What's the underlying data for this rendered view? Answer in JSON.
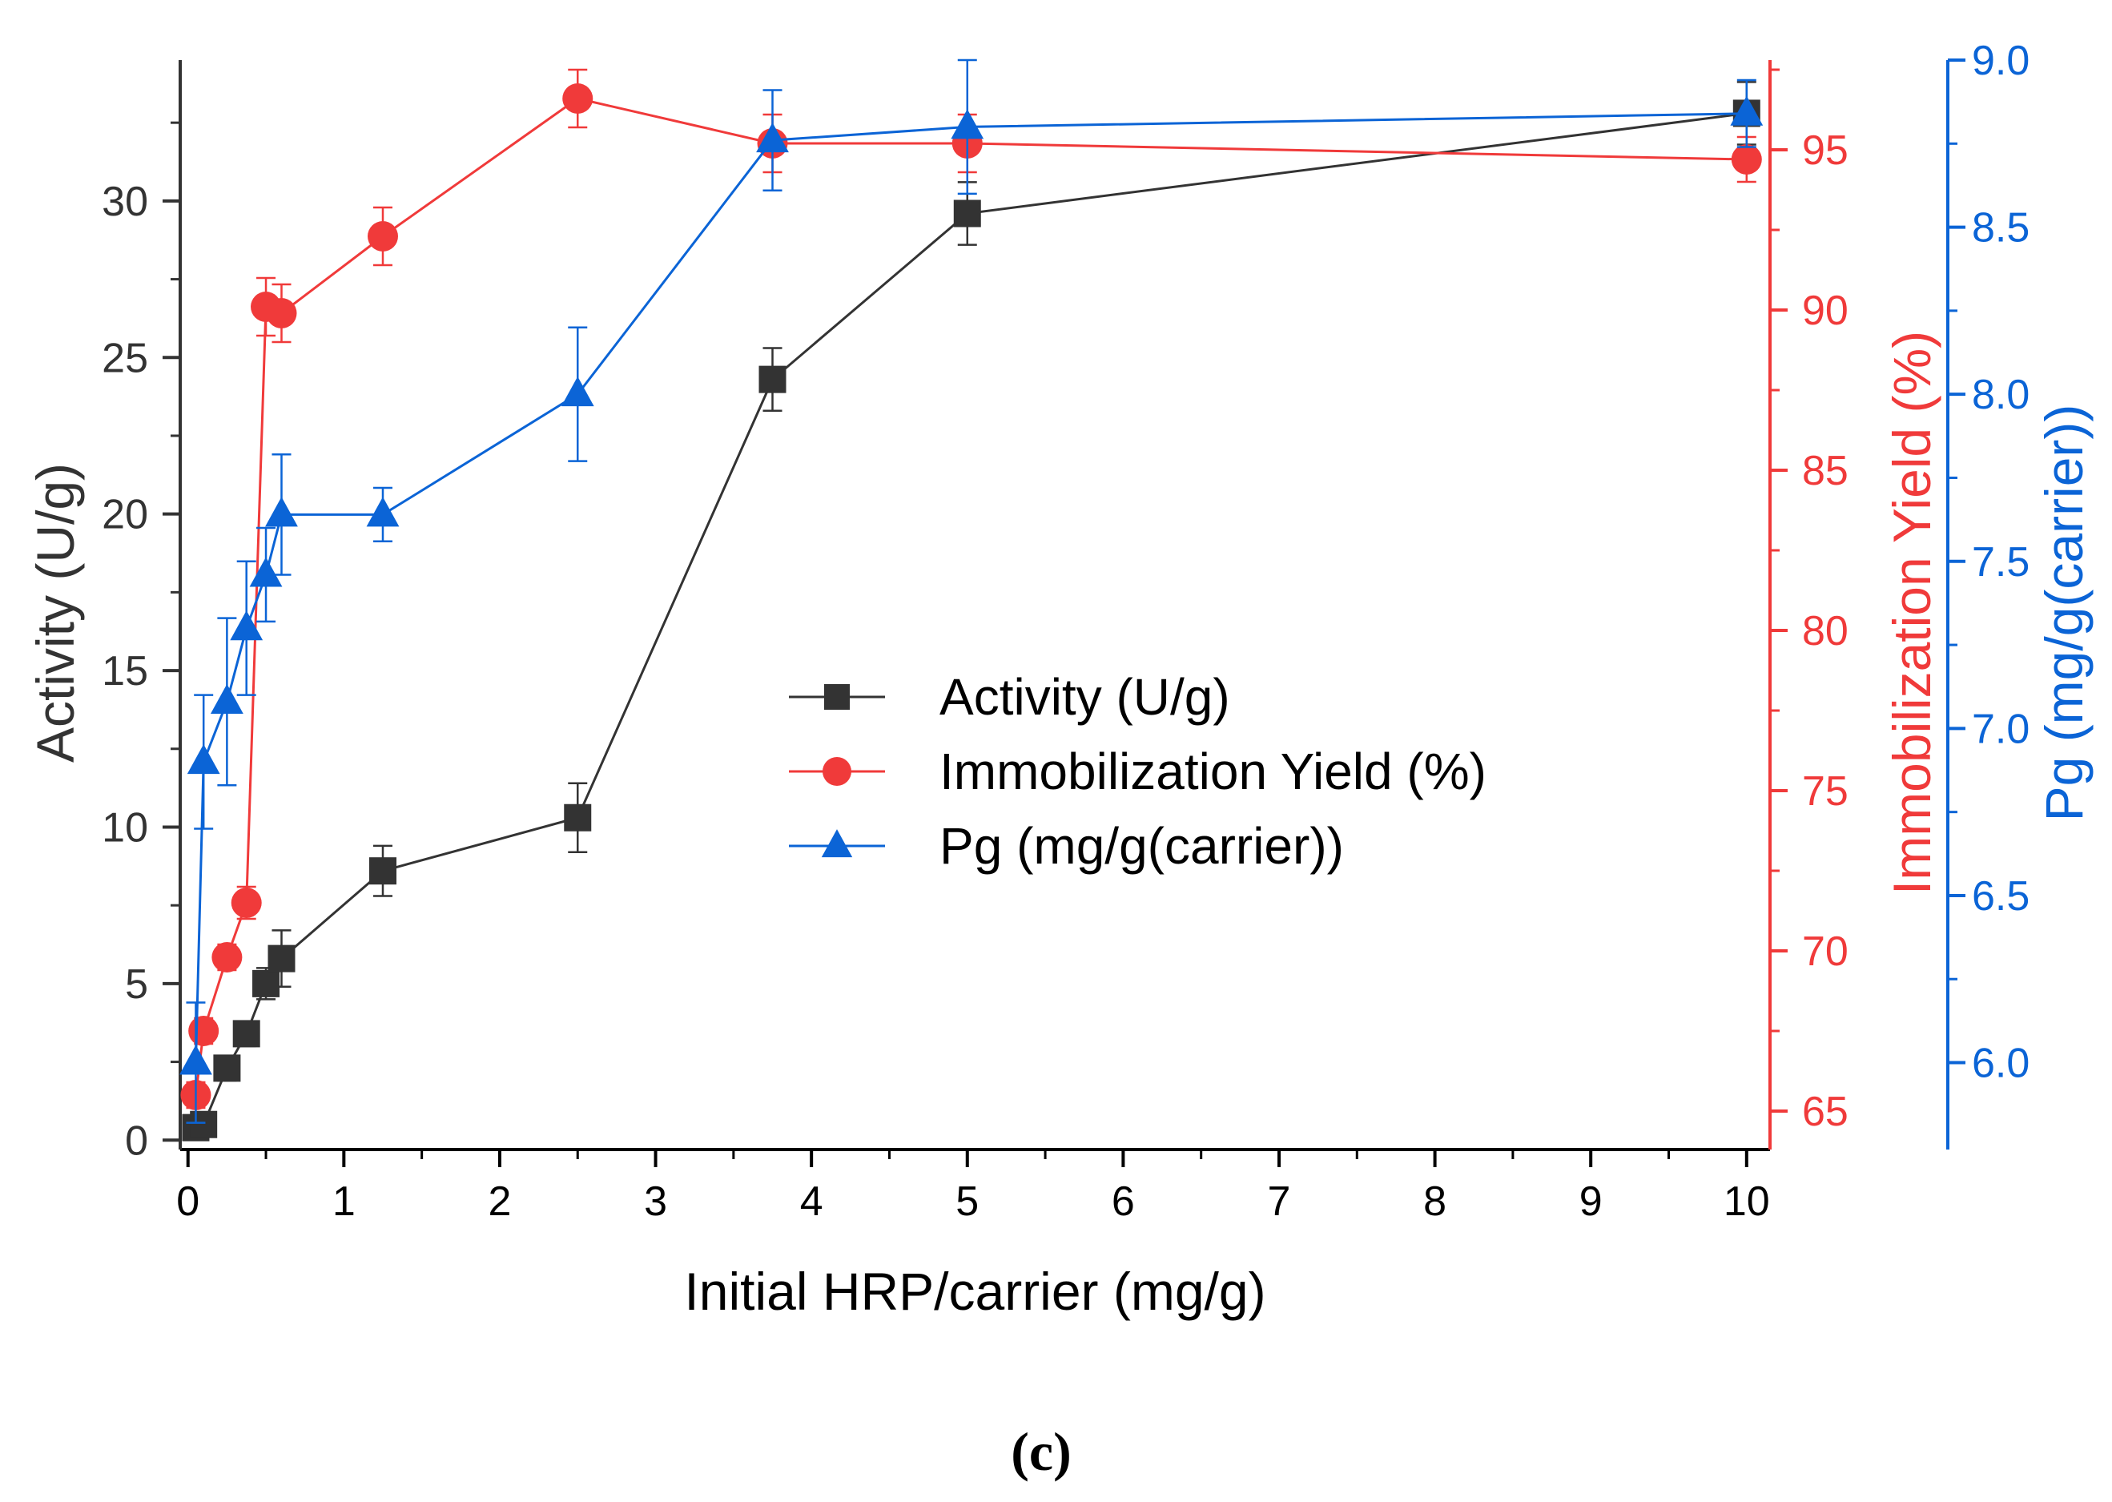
{
  "chart_data": {
    "type": "line",
    "xlabel": "Initial HRP/carrier (mg/g)",
    "xlim": [
      -0.05,
      10.15
    ],
    "x_ticks": [
      0,
      1,
      2,
      3,
      4,
      5,
      6,
      7,
      8,
      9,
      10
    ],
    "x_tick_labels": [
      "0",
      "1",
      "2",
      "3",
      "4",
      "5",
      "6",
      "7",
      "8",
      "9",
      "10"
    ],
    "axes": {
      "left": {
        "label": "Activity (U/g)",
        "ylim": [
          -0.3,
          34.5
        ],
        "ticks": [
          0,
          5,
          10,
          15,
          20,
          25,
          30
        ],
        "tick_labels": [
          "0",
          "5",
          "10",
          "15",
          "20",
          "25",
          "30"
        ],
        "color": "#333333"
      },
      "right1": {
        "label": "Immobilization Yield (%)",
        "ylim": [
          63.8,
          97.8
        ],
        "ticks": [
          65,
          70,
          75,
          80,
          85,
          90,
          95
        ],
        "tick_labels": [
          "65",
          "70",
          "75",
          "80",
          "85",
          "90",
          "95"
        ],
        "color": "#f03a3a"
      },
      "right2": {
        "label": "Pg (mg/g(carrier))",
        "ylim": [
          5.74,
          9.0
        ],
        "ticks": [
          6.0,
          6.5,
          7.0,
          7.5,
          8.0,
          8.5,
          9.0
        ],
        "tick_labels": [
          "6.0",
          "6.5",
          "7.0",
          "7.5",
          "8.0",
          "8.5",
          "9.0"
        ],
        "color": "#0b64d6"
      }
    },
    "series": [
      {
        "name": "Activity (U/g)",
        "axis": "left",
        "marker": "square",
        "color": "#333333",
        "x": [
          0.05,
          0.1,
          0.25,
          0.375,
          0.5,
          0.6,
          1.25,
          2.5,
          3.75,
          5,
          10
        ],
        "y": [
          0.4,
          0.5,
          2.3,
          3.4,
          5.0,
          5.8,
          8.6,
          10.3,
          24.3,
          29.6,
          32.8
        ],
        "err": [
          0.3,
          0.3,
          0.4,
          0.4,
          0.5,
          0.9,
          0.8,
          1.1,
          1.0,
          1.0,
          1.0
        ]
      },
      {
        "name": "Immobilization Yield (%)",
        "axis": "right1",
        "marker": "circle",
        "color": "#f03a3a",
        "x": [
          0.05,
          0.1,
          0.25,
          0.375,
          0.5,
          0.6,
          1.25,
          2.5,
          3.75,
          5,
          10
        ],
        "y": [
          65.5,
          67.5,
          69.8,
          71.5,
          90.1,
          89.9,
          92.3,
          96.6,
          95.2,
          95.2,
          94.7
        ],
        "err": [
          0.4,
          0.4,
          0.4,
          0.5,
          0.9,
          0.9,
          0.9,
          0.9,
          0.9,
          0.9,
          0.7
        ]
      },
      {
        "name": "Pg (mg/g(carrier))",
        "axis": "right2",
        "marker": "triangle",
        "color": "#0b64d6",
        "x": [
          0.05,
          0.1,
          0.25,
          0.375,
          0.5,
          0.6,
          1.25,
          2.5,
          3.75,
          5,
          10
        ],
        "y": [
          6.0,
          6.9,
          7.08,
          7.3,
          7.46,
          7.64,
          7.64,
          8.0,
          8.76,
          8.8,
          8.84
        ],
        "err": [
          0.18,
          0.2,
          0.25,
          0.2,
          0.14,
          0.18,
          0.08,
          0.2,
          0.15,
          0.2,
          0.1
        ]
      }
    ],
    "legend_position": "center-right",
    "caption": "(c)"
  }
}
